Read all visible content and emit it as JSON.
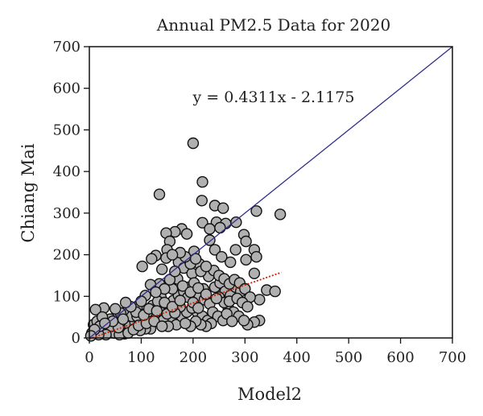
{
  "chart_data": {
    "type": "scatter",
    "title": "Annual PM2.5 Data for 2020",
    "xlabel": "Model2",
    "ylabel": "Chiang Mai",
    "xlim": [
      0,
      700
    ],
    "ylim": [
      0,
      700
    ],
    "xticks": [
      "0",
      "100",
      "200",
      "300",
      "400",
      "500",
      "600",
      "700"
    ],
    "yticks": [
      "0",
      "100",
      "200",
      "300",
      "400",
      "500",
      "600",
      "700"
    ],
    "grid": false,
    "legend": "none",
    "equation": "y = 0.4311x - 2.1175",
    "trendline": {
      "slope": 0.4311,
      "intercept": -2.1175,
      "x_range": [
        0,
        370
      ],
      "color": "#cc2200",
      "style": "dotted"
    },
    "identity_line": {
      "x_range": [
        0,
        700
      ],
      "color": "#2e2e8a"
    },
    "marker": {
      "fill": "#b0b0b0",
      "stroke": "#111111"
    },
    "points": [
      [
        200,
        468
      ],
      [
        218,
        375
      ],
      [
        135,
        345
      ],
      [
        368,
        297
      ],
      [
        322,
        305
      ],
      [
        217,
        330
      ],
      [
        242,
        318
      ],
      [
        258,
        312
      ],
      [
        245,
        278
      ],
      [
        263,
        275
      ],
      [
        283,
        278
      ],
      [
        218,
        277
      ],
      [
        178,
        262
      ],
      [
        232,
        262
      ],
      [
        252,
        265
      ],
      [
        165,
        255
      ],
      [
        148,
        252
      ],
      [
        188,
        250
      ],
      [
        298,
        248
      ],
      [
        302,
        232
      ],
      [
        232,
        235
      ],
      [
        155,
        232
      ],
      [
        202,
        208
      ],
      [
        242,
        212
      ],
      [
        282,
        212
      ],
      [
        318,
        212
      ],
      [
        150,
        212
      ],
      [
        128,
        198
      ],
      [
        148,
        192
      ],
      [
        172,
        182
      ],
      [
        212,
        178
      ],
      [
        102,
        172
      ],
      [
        120,
        190
      ],
      [
        182,
        168
      ],
      [
        198,
        155
      ],
      [
        322,
        195
      ],
      [
        272,
        182
      ],
      [
        302,
        188
      ],
      [
        255,
        195
      ],
      [
        342,
        115
      ],
      [
        358,
        112
      ],
      [
        318,
        155
      ],
      [
        328,
        92
      ],
      [
        328,
        42
      ],
      [
        318,
        38
      ],
      [
        285,
        52
      ],
      [
        305,
        32
      ],
      [
        138,
        98
      ],
      [
        108,
        102
      ],
      [
        92,
        75
      ],
      [
        72,
        62
      ],
      [
        62,
        38
      ],
      [
        52,
        52
      ],
      [
        28,
        72
      ],
      [
        12,
        68
      ],
      [
        8,
        32
      ],
      [
        5,
        12
      ],
      [
        22,
        18
      ],
      [
        35,
        25
      ],
      [
        48,
        12
      ],
      [
        62,
        18
      ],
      [
        78,
        28
      ],
      [
        88,
        38
      ],
      [
        102,
        42
      ],
      [
        118,
        22
      ],
      [
        128,
        52
      ],
      [
        142,
        62
      ],
      [
        152,
        78
      ],
      [
        162,
        90
      ],
      [
        172,
        102
      ],
      [
        182,
        112
      ],
      [
        192,
        122
      ],
      [
        202,
        132
      ],
      [
        212,
        102
      ],
      [
        222,
        92
      ],
      [
        232,
        82
      ],
      [
        242,
        122
      ],
      [
        252,
        132
      ],
      [
        262,
        112
      ],
      [
        272,
        102
      ],
      [
        282,
        122
      ],
      [
        292,
        112
      ],
      [
        208,
        62
      ],
      [
        218,
        52
      ],
      [
        228,
        42
      ],
      [
        238,
        62
      ],
      [
        248,
        52
      ],
      [
        258,
        42
      ],
      [
        268,
        72
      ],
      [
        278,
        62
      ],
      [
        288,
        52
      ],
      [
        298,
        42
      ],
      [
        158,
        42
      ],
      [
        168,
        32
      ],
      [
        178,
        52
      ],
      [
        188,
        62
      ],
      [
        198,
        72
      ],
      [
        82,
        52
      ],
      [
        92,
        52
      ],
      [
        112,
        62
      ],
      [
        122,
        78
      ],
      [
        132,
        88
      ],
      [
        142,
        42
      ],
      [
        152,
        28
      ],
      [
        108,
        22
      ],
      [
        98,
        18
      ],
      [
        68,
        10
      ],
      [
        58,
        8
      ],
      [
        42,
        28
      ],
      [
        32,
        8
      ],
      [
        18,
        8
      ],
      [
        15,
        40
      ],
      [
        40,
        45
      ],
      [
        56,
        25
      ],
      [
        75,
        12
      ],
      [
        85,
        20
      ],
      [
        95,
        30
      ],
      [
        110,
        35
      ],
      [
        125,
        40
      ],
      [
        140,
        28
      ],
      [
        150,
        58
      ],
      [
        160,
        118
      ],
      [
        170,
        142
      ],
      [
        180,
        125
      ],
      [
        190,
        98
      ],
      [
        200,
        85
      ],
      [
        210,
        72
      ],
      [
        220,
        118
      ],
      [
        230,
        148
      ],
      [
        240,
        162
      ],
      [
        250,
        150
      ],
      [
        260,
        142
      ],
      [
        270,
        130
      ],
      [
        280,
        140
      ],
      [
        290,
        132
      ],
      [
        300,
        118
      ],
      [
        310,
        98
      ],
      [
        250,
        98
      ],
      [
        260,
        85
      ],
      [
        270,
        88
      ],
      [
        265,
        58
      ],
      [
        275,
        40
      ],
      [
        235,
        35
      ],
      [
        225,
        28
      ],
      [
        215,
        32
      ],
      [
        205,
        40
      ],
      [
        195,
        28
      ],
      [
        185,
        35
      ],
      [
        175,
        75
      ],
      [
        165,
        60
      ],
      [
        135,
        130
      ],
      [
        145,
        118
      ],
      [
        155,
        140
      ],
      [
        118,
        128
      ],
      [
        128,
        110
      ],
      [
        100,
        88
      ],
      [
        90,
        62
      ],
      [
        80,
        75
      ],
      [
        70,
        85
      ],
      [
        60,
        60
      ],
      [
        50,
        70
      ],
      [
        45,
        40
      ],
      [
        25,
        50
      ],
      [
        20,
        28
      ],
      [
        10,
        20
      ],
      [
        3,
        5
      ],
      [
        30,
        35
      ],
      [
        65,
        45
      ],
      [
        105,
        55
      ],
      [
        115,
        70
      ],
      [
        130,
        65
      ],
      [
        145,
        85
      ],
      [
        160,
        75
      ],
      [
        175,
        90
      ],
      [
        195,
        110
      ],
      [
        210,
        120
      ],
      [
        225,
        105
      ],
      [
        245,
        95
      ],
      [
        285,
        95
      ],
      [
        295,
        85
      ],
      [
        305,
        75
      ],
      [
        215,
        160
      ],
      [
        225,
        172
      ],
      [
        195,
        178
      ],
      [
        185,
        195
      ],
      [
        205,
        190
      ],
      [
        165,
        160
      ],
      [
        175,
        205
      ],
      [
        140,
        165
      ],
      [
        160,
        200
      ]
    ]
  }
}
